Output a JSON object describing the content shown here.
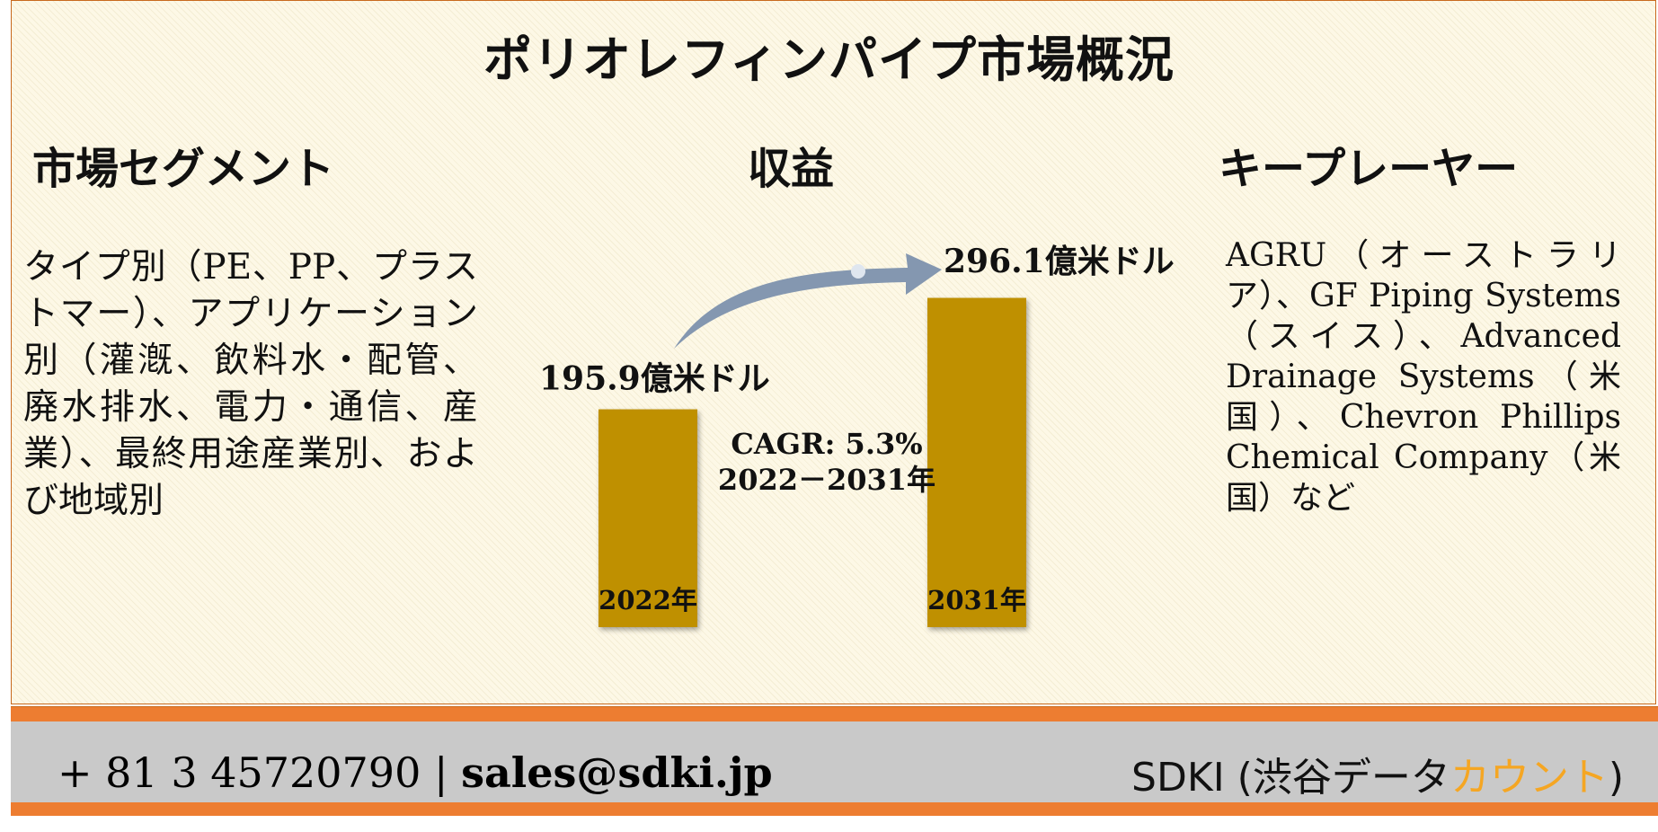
{
  "title": "ポリオレフィンパイプ市場概況",
  "segment": {
    "heading": "市場セグメント",
    "text": "タイプ別（PE、PP、プラストマー）、アプリケーション別（灌漑、飲料水・配管、廃水排水、電力・通信、産業）、最終用途産業別、および地域別"
  },
  "revenue": {
    "heading": "収益"
  },
  "key_players": {
    "heading": "キープレーヤー",
    "text": "AGRU（オーストラリア）、GF Piping Systems（スイス）、Advanced Drainage Systems（米国）、Chevron Phillips Chemical Company（米国）など"
  },
  "chart_data": {
    "type": "bar",
    "categories": [
      "2022年",
      "2031年"
    ],
    "values": [
      195.9,
      296.1
    ],
    "value_labels": [
      "195.9億米ドル",
      "296.1億米ドル"
    ],
    "cagr": "CAGR: 5.3%",
    "cagr_period": "2022－2031年",
    "bar_color": "#bf9000",
    "arrow_color": "#8497b0"
  },
  "footer": {
    "phone": "+ 81 3 45720790",
    "separator": "|",
    "email": "sales@sdki.jp",
    "brand_prefix": "SDKI (渋谷データ",
    "brand_accent": "カウント",
    "brand_suffix": ")",
    "bar_color": "#ed7d31",
    "accent_color": "#f5a623"
  }
}
